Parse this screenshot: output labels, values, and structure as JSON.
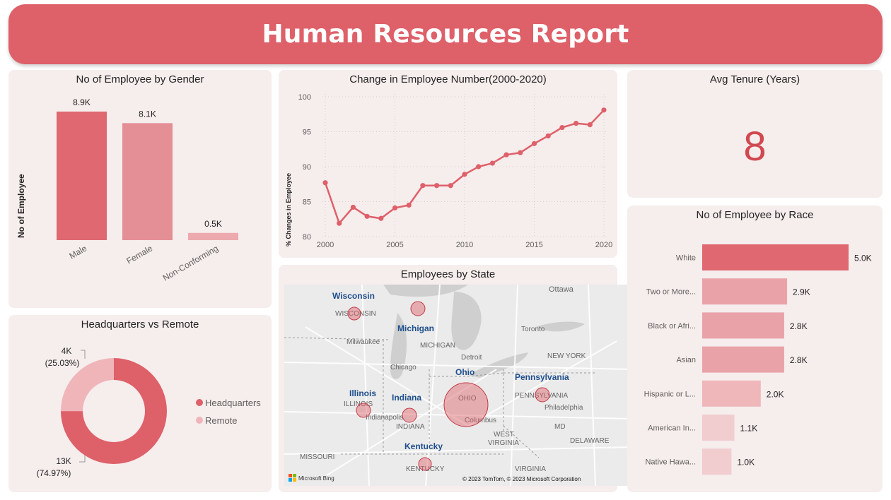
{
  "header": {
    "title": "Human Resources Report"
  },
  "gender_card": {
    "title": "No of Employee by Gender",
    "ylabel": "No of Employee"
  },
  "trend_card": {
    "title": "Change in Employee Number(2000-2020)",
    "ylabel": "% Changes in Employee"
  },
  "tenure_card": {
    "title": "Avg Tenure (Years)",
    "value": "8"
  },
  "hq_card": {
    "title": "Headquarters vs Remote",
    "label_remote_value": "4K",
    "label_remote_pct": "(25.03%)",
    "label_hq_value": "13K",
    "label_hq_pct": "(74.97%)",
    "legend": [
      "Headquarters",
      "Remote"
    ]
  },
  "map_card": {
    "title": "Employees by State",
    "states": [
      "Wisconsin",
      "Michigan",
      "Ohio",
      "Illinois",
      "Indiana",
      "Pennsylvania",
      "Kentucky"
    ],
    "base_labels": [
      "Ottawa",
      "WISCONSIN",
      "MICHIGAN",
      "Milwaukee",
      "Toronto",
      "Detroit",
      "NEW YORK",
      "Chicago",
      "OHIO",
      "PENNSYLVANIA",
      "ILLINOIS",
      "Indianapolis",
      "INDIANA",
      "Philadelphia",
      "Columbus",
      "WEST",
      "VIRGINIA",
      "MD",
      "DELAWARE",
      "MISSOURI",
      "KENTUCKY",
      "VIRGINIA"
    ],
    "bing_label": "Microsoft Bing",
    "copyright": "© 2023 TomTom, © 2023 Microsoft Corporation"
  },
  "race_card": {
    "title": "No of Employee by Race"
  },
  "colors": {
    "accent": "#de6069",
    "bar_dark": "#df6871",
    "bar_mid": "#e48f95",
    "bar_light": "#ecaaae",
    "card_bg": "#f6eded"
  },
  "chart_data": [
    {
      "type": "bar",
      "title": "No of Employee by Gender",
      "ylabel": "No of Employee",
      "categories": [
        "Male",
        "Female",
        "Non-Conforming"
      ],
      "values": [
        8.9,
        8.1,
        0.5
      ],
      "value_labels": [
        "8.9K",
        "8.1K",
        "0.5K"
      ],
      "unit": "K"
    },
    {
      "type": "line",
      "title": "Change in Employee Number(2000-2020)",
      "ylabel": "% Changes in Employee",
      "x": [
        2000,
        2001,
        2002,
        2003,
        2004,
        2005,
        2006,
        2007,
        2008,
        2009,
        2010,
        2011,
        2012,
        2013,
        2014,
        2015,
        2016,
        2017,
        2018,
        2019,
        2020
      ],
      "values": [
        87.7,
        81.9,
        84.2,
        82.9,
        82.6,
        84.1,
        84.5,
        87.3,
        87.3,
        87.3,
        88.9,
        90.0,
        90.5,
        91.7,
        92.0,
        93.3,
        94.4,
        95.6,
        96.2,
        96.0,
        98.1
      ],
      "xticks": [
        2000,
        2005,
        2010,
        2015,
        2020
      ],
      "yticks": [
        80,
        85,
        90,
        95,
        100
      ],
      "ylim": [
        80,
        100
      ],
      "grid": true
    },
    {
      "type": "pie",
      "title": "Headquarters vs Remote",
      "categories": [
        "Headquarters",
        "Remote"
      ],
      "values": [
        13,
        4
      ],
      "percent": [
        74.97,
        25.03
      ],
      "donut": true
    },
    {
      "type": "bar",
      "orientation": "horizontal",
      "title": "No of Employee by Race",
      "categories": [
        "White",
        "Two or More...",
        "Black or Afri...",
        "Asian",
        "Hispanic or L...",
        "American In...",
        "Native Hawa..."
      ],
      "values": [
        5.0,
        2.9,
        2.8,
        2.8,
        2.0,
        1.1,
        1.0
      ],
      "value_labels": [
        "5.0K",
        "2.9K",
        "2.8K",
        "2.8K",
        "2.0K",
        "1.1K",
        "1.0K"
      ],
      "unit": "K"
    }
  ]
}
